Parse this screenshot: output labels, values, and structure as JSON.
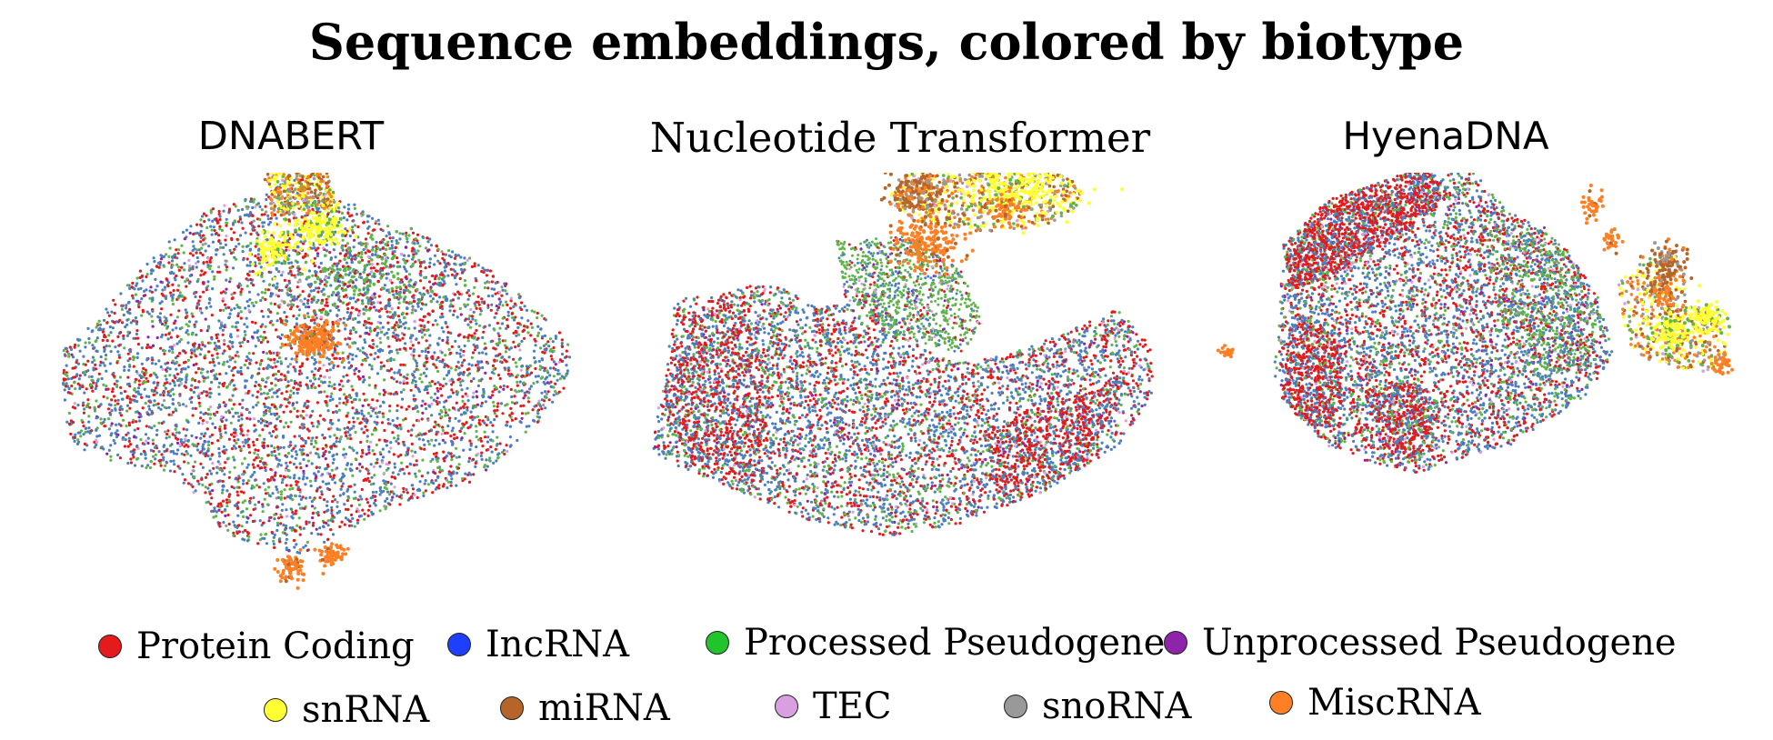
{
  "chart_data": {
    "type": "scatter",
    "title": "Sequence embeddings, colored by biotype",
    "panels": [
      {
        "title": "DNABERT"
      },
      {
        "title": "Nucleotide Transformer"
      },
      {
        "title": "HyenaDNA"
      }
    ],
    "legend": {
      "placement": "bottom",
      "entries": [
        {
          "label": "Protein Coding",
          "color": "#e41a1c"
        },
        {
          "label": "IncRNA",
          "color": "#1f3fff"
        },
        {
          "label": "Processed Pseudogene",
          "color": "#22c42c"
        },
        {
          "label": "Unprocessed Pseudogene",
          "color": "#8e24aa"
        },
        {
          "label": "snRNA",
          "color": "#ffff33"
        },
        {
          "label": "miRNA",
          "color": "#b5652a"
        },
        {
          "label": "TEC",
          "color": "#d8a0e0"
        },
        {
          "label": "snoRNA",
          "color": "#999999"
        },
        {
          "label": "MiscRNA",
          "color": "#ff7f24"
        }
      ]
    },
    "point_colors": {
      "Protein Coding": "#e41a1c",
      "IncRNA": "#4a7fc1",
      "Processed Pseudogene": "#5fb548",
      "Unprocessed Pseudogene": "#8e24aa",
      "snRNA": "#ffff33",
      "miRNA": "#b5652a",
      "TEC": "#d8a0e0",
      "snoRNA": "#999999",
      "MiscRNA": "#ff7f24"
    },
    "grid": false,
    "axes_visible": false
  }
}
